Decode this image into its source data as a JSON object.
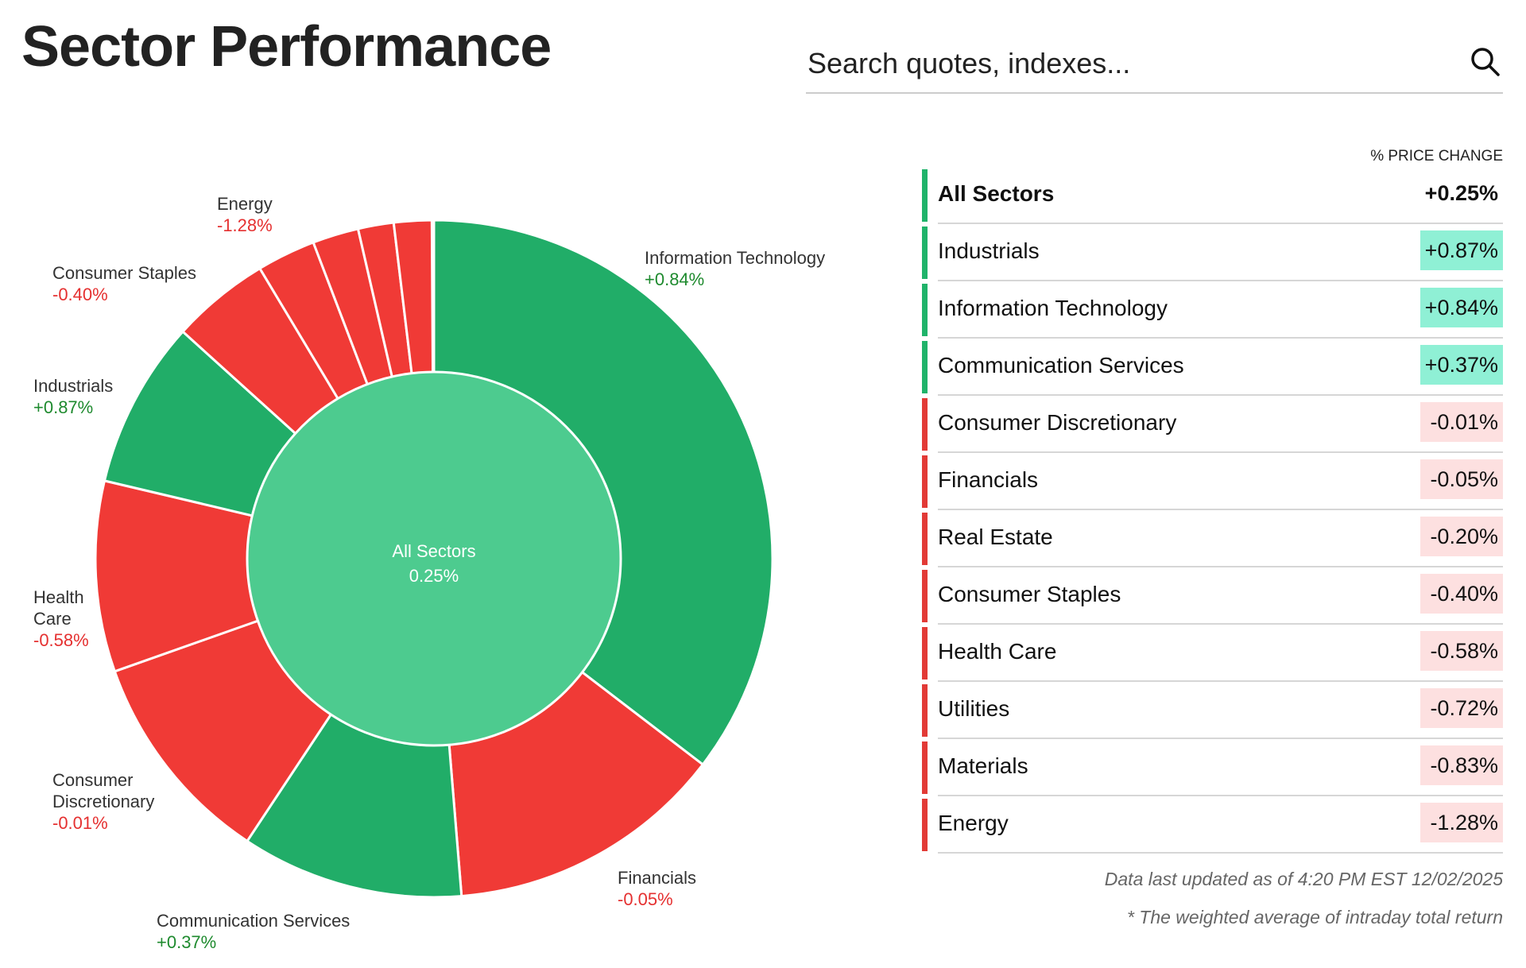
{
  "title": "Sector Performance",
  "search": {
    "placeholder": "Search quotes, indexes..."
  },
  "icons": {
    "search": "search-icon"
  },
  "colors": {
    "positive_slice": "#21ad68",
    "negative_slice": "#f03a36",
    "center": "#4dcb8f",
    "positive_bar": "#1fb36a",
    "negative_bar": "#e23a36",
    "positive_badge": "#8ff0d5",
    "negative_badge": "#fde0e0"
  },
  "chart_data": {
    "type": "donut",
    "center": {
      "label": "All Sectors",
      "value": "0.25%"
    },
    "slices": [
      {
        "name": "Information Technology",
        "change": "+0.84%",
        "share": 0.354
      },
      {
        "name": "Financials",
        "change": "-0.05%",
        "share": 0.133
      },
      {
        "name": "Communication Services",
        "change": "+0.37%",
        "share": 0.106
      },
      {
        "name": "Consumer Discretionary",
        "change": "-0.01%",
        "share": 0.103
      },
      {
        "name": "Health Care",
        "change": "-0.58%",
        "share": 0.091
      },
      {
        "name": "Industrials",
        "change": "+0.87%",
        "share": 0.08
      },
      {
        "name": "Consumer Staples",
        "change": "-0.40%",
        "share": 0.047
      },
      {
        "name": "Energy",
        "change": "-1.28%",
        "share": 0.028
      },
      {
        "name": "Utilities",
        "change": "-0.72%",
        "share": 0.022
      },
      {
        "name": "Materials",
        "change": "-0.83%",
        "share": 0.017
      },
      {
        "name": "Real Estate",
        "change": "-0.20%",
        "share": 0.018
      }
    ]
  },
  "chart_labels": {
    "information_technology": {
      "name": "Information Technology",
      "value": "+0.84%"
    },
    "financials": {
      "name": "Financials",
      "value": "-0.05%"
    },
    "communication_services": {
      "name": "Communication Services",
      "value": "+0.37%"
    },
    "consumer_discretionary": {
      "name_line1": "Consumer",
      "name_line2": "Discretionary",
      "value": "-0.01%"
    },
    "health_care": {
      "name_line1": "Health",
      "name_line2": "Care",
      "value": "-0.58%"
    },
    "industrials": {
      "name": "Industrials",
      "value": "+0.87%"
    },
    "consumer_staples": {
      "name": "Consumer Staples",
      "value": "-0.40%"
    },
    "energy": {
      "name": "Energy",
      "value": "-1.28%"
    }
  },
  "table": {
    "column_header": "% PRICE CHANGE",
    "rows": [
      {
        "name": "All Sectors",
        "value": "+0.25%",
        "sign": "pos",
        "total": true
      },
      {
        "name": "Industrials",
        "value": "+0.87%",
        "sign": "pos"
      },
      {
        "name": "Information Technology",
        "value": "+0.84%",
        "sign": "pos"
      },
      {
        "name": "Communication Services",
        "value": "+0.37%",
        "sign": "pos"
      },
      {
        "name": "Consumer Discretionary",
        "value": "-0.01%",
        "sign": "neg"
      },
      {
        "name": "Financials",
        "value": "-0.05%",
        "sign": "neg"
      },
      {
        "name": "Real Estate",
        "value": "-0.20%",
        "sign": "neg"
      },
      {
        "name": "Consumer Staples",
        "value": "-0.40%",
        "sign": "neg"
      },
      {
        "name": "Health Care",
        "value": "-0.58%",
        "sign": "neg"
      },
      {
        "name": "Utilities",
        "value": "-0.72%",
        "sign": "neg"
      },
      {
        "name": "Materials",
        "value": "-0.83%",
        "sign": "neg"
      },
      {
        "name": "Energy",
        "value": "-1.28%",
        "sign": "neg"
      }
    ]
  },
  "footer": {
    "updated": "Data last updated as of 4:20 PM EST 12/02/2025",
    "note": "* The weighted average of intraday total return"
  }
}
